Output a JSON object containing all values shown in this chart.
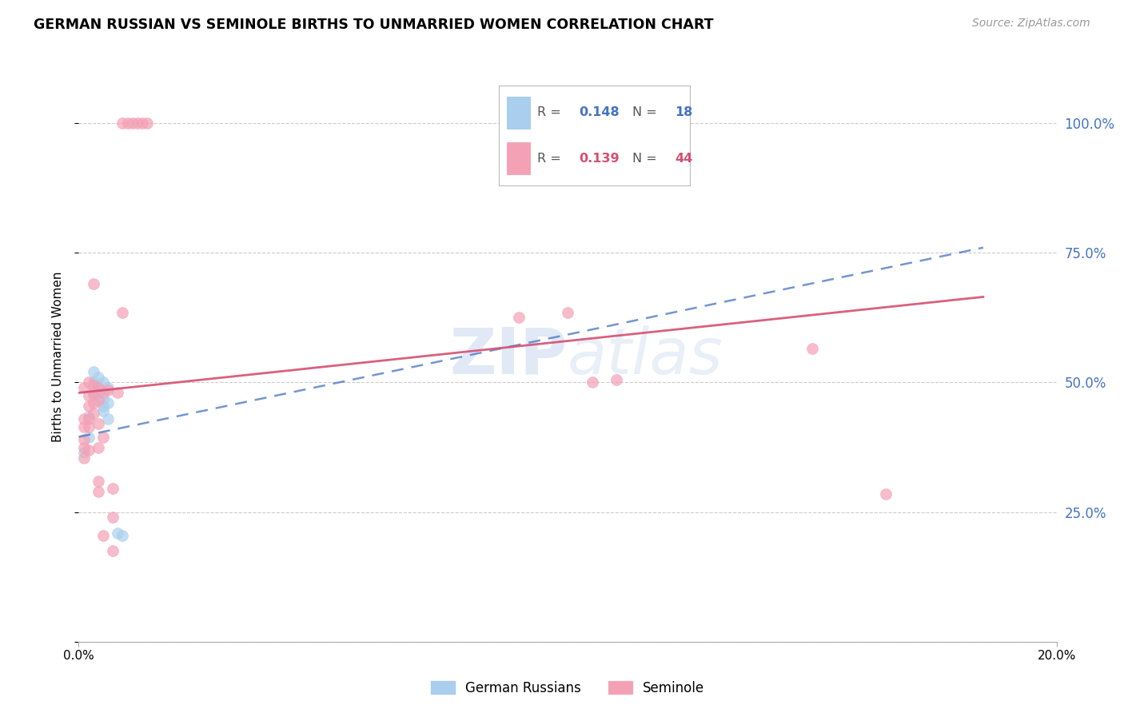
{
  "title": "GERMAN RUSSIAN VS SEMINOLE BIRTHS TO UNMARRIED WOMEN CORRELATION CHART",
  "source": "Source: ZipAtlas.com",
  "ylabel": "Births to Unmarried Women",
  "xmin": 0.0,
  "xmax": 0.2,
  "ymin": 0.0,
  "ymax": 1.1,
  "yticks": [
    0.0,
    0.25,
    0.5,
    0.75,
    1.0
  ],
  "ytick_labels": [
    "",
    "25.0%",
    "50.0%",
    "75.0%",
    "100.0%"
  ],
  "watermark": "ZIPatlas",
  "legend_r_blue": "0.148",
  "legend_n_blue": "18",
  "legend_r_pink": "0.139",
  "legend_n_pink": "44",
  "legend_label_blue": "German Russians",
  "legend_label_pink": "Seminole",
  "blue_color": "#aacfee",
  "pink_color": "#f4a0b5",
  "blue_line_color": "#4472c4",
  "pink_line_color": "#d45070",
  "right_axis_color": "#4472c4",
  "blue_scatter": [
    [
      0.001,
      0.365
    ],
    [
      0.002,
      0.435
    ],
    [
      0.002,
      0.395
    ],
    [
      0.003,
      0.475
    ],
    [
      0.003,
      0.5
    ],
    [
      0.003,
      0.52
    ],
    [
      0.004,
      0.51
    ],
    [
      0.004,
      0.49
    ],
    [
      0.004,
      0.48
    ],
    [
      0.005,
      0.5
    ],
    [
      0.005,
      0.47
    ],
    [
      0.005,
      0.455
    ],
    [
      0.005,
      0.445
    ],
    [
      0.006,
      0.49
    ],
    [
      0.006,
      0.46
    ],
    [
      0.006,
      0.43
    ],
    [
      0.008,
      0.21
    ],
    [
      0.009,
      0.205
    ]
  ],
  "pink_scatter": [
    [
      0.001,
      0.355
    ],
    [
      0.001,
      0.375
    ],
    [
      0.001,
      0.39
    ],
    [
      0.001,
      0.415
    ],
    [
      0.001,
      0.43
    ],
    [
      0.001,
      0.49
    ],
    [
      0.002,
      0.37
    ],
    [
      0.002,
      0.415
    ],
    [
      0.002,
      0.43
    ],
    [
      0.002,
      0.455
    ],
    [
      0.002,
      0.475
    ],
    [
      0.002,
      0.5
    ],
    [
      0.003,
      0.44
    ],
    [
      0.003,
      0.46
    ],
    [
      0.003,
      0.48
    ],
    [
      0.003,
      0.495
    ],
    [
      0.003,
      0.69
    ],
    [
      0.004,
      0.29
    ],
    [
      0.004,
      0.31
    ],
    [
      0.004,
      0.375
    ],
    [
      0.004,
      0.42
    ],
    [
      0.004,
      0.465
    ],
    [
      0.004,
      0.49
    ],
    [
      0.005,
      0.205
    ],
    [
      0.005,
      0.395
    ],
    [
      0.005,
      0.48
    ],
    [
      0.006,
      0.485
    ],
    [
      0.007,
      0.175
    ],
    [
      0.007,
      0.24
    ],
    [
      0.007,
      0.295
    ],
    [
      0.008,
      0.48
    ],
    [
      0.009,
      0.635
    ],
    [
      0.009,
      1.0
    ],
    [
      0.01,
      1.0
    ],
    [
      0.011,
      1.0
    ],
    [
      0.012,
      1.0
    ],
    [
      0.013,
      1.0
    ],
    [
      0.014,
      1.0
    ],
    [
      0.09,
      0.625
    ],
    [
      0.1,
      0.635
    ],
    [
      0.105,
      0.5
    ],
    [
      0.11,
      0.505
    ],
    [
      0.15,
      0.565
    ],
    [
      0.165,
      0.285
    ]
  ],
  "blue_line_x": [
    0.0,
    0.185
  ],
  "blue_line_y": [
    0.395,
    0.76
  ],
  "pink_line_x": [
    0.0,
    0.185
  ],
  "pink_line_y": [
    0.48,
    0.665
  ]
}
